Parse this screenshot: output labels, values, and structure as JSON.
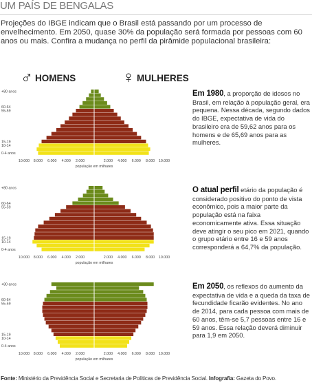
{
  "title": "UM PAÍS DE BENGALAS",
  "intro": "Projeções do IBGE indicam que o Brasil está passando por um processo de envelhecimento. Em 2050, quase 30% da população será formada por pessoas com 60 anos ou mais. Confira a mudança no perfil da pirâmide populacional brasileira:",
  "legend": {
    "men_symbol": "♂",
    "men_label": "HOMENS",
    "women_symbol": "♀",
    "women_label": "MULHERES"
  },
  "colors": {
    "young": "#f2e21a",
    "working": "#8e2b17",
    "elderly": "#6b8b1c",
    "axis": "#ffffff"
  },
  "chart_data": [
    {
      "type": "bar",
      "orientation": "horizontal-pyramid",
      "ages": [
        "0-4 anos",
        "5-9",
        "10-14",
        "15-19",
        "20-24",
        "25-29",
        "30-34",
        "35-39",
        "40-44",
        "45-49",
        "50-54",
        "55-59",
        "60-64",
        "65-69",
        "70-74",
        "75-79",
        "+80 anos"
      ],
      "age_labels_shown": [
        "+80 anos",
        "60-64",
        "55-59",
        "15-19",
        "10-14",
        "0-4 anos"
      ],
      "series": [
        {
          "name": "HOMENS",
          "values": [
            8000,
            8200,
            7900,
            7500,
            6800,
            6100,
            5400,
            4800,
            4200,
            3600,
            3100,
            2600,
            2100,
            1650,
            1150,
            750,
            450
          ]
        },
        {
          "name": "MULHERES",
          "values": [
            7800,
            8000,
            7700,
            7400,
            6700,
            6100,
            5500,
            4900,
            4300,
            3800,
            3300,
            2800,
            2300,
            1850,
            1400,
            950,
            650
          ]
        }
      ],
      "xticks": [
        "10.000",
        "8.000",
        "6.000",
        "4.000",
        "2.000",
        "2.000",
        "4.000",
        "6.000",
        "8.000",
        "10.000"
      ],
      "xlabel": "população em milhares",
      "xlim": [
        0,
        10000
      ]
    },
    {
      "type": "bar",
      "orientation": "horizontal-pyramid",
      "ages": [
        "0-4 anos",
        "5-9",
        "10-14",
        "15-19",
        "20-24",
        "25-29",
        "30-34",
        "35-39",
        "40-44",
        "45-49",
        "50-54",
        "55-59",
        "60-64",
        "65-69",
        "70-74",
        "75-79",
        "+80 anos"
      ],
      "age_labels_shown": [
        "+80 anos",
        "60-64",
        "55-59",
        "15-19",
        "10-14",
        "0-4 anos"
      ],
      "series": [
        {
          "name": "HOMENS",
          "values": [
            7500,
            8200,
            8800,
            8600,
            8500,
            8400,
            8000,
            7200,
            6400,
            5600,
            4800,
            4000,
            3100,
            2300,
            1600,
            1100,
            800
          ]
        },
        {
          "name": "MULHERES",
          "values": [
            7200,
            7900,
            8500,
            8500,
            8500,
            8400,
            8100,
            7500,
            6700,
            6000,
            5200,
            4400,
            3500,
            2700,
            2000,
            1500,
            1200
          ]
        }
      ],
      "xticks": [
        "10.000",
        "8.000",
        "6.000",
        "4.000",
        "2.000",
        "2.000",
        "4.000",
        "6.000",
        "8.000",
        "10.000"
      ],
      "xlabel": "população em milhares",
      "xlim": [
        0,
        10000
      ]
    },
    {
      "type": "bar",
      "orientation": "horizontal-pyramid",
      "ages": [
        "0-4 anos",
        "5-9",
        "10-14",
        "15-19",
        "20-24",
        "25-29",
        "30-34",
        "35-39",
        "40-44",
        "45-49",
        "50-54",
        "55-59",
        "60-64",
        "65-69",
        "70-74",
        "75-79",
        "+80 anos"
      ],
      "age_labels_shown": [
        "+80 anos",
        "60-64",
        "55-59",
        "15-19",
        "10-14",
        "0-4 anos"
      ],
      "series": [
        {
          "name": "HOMENS",
          "values": [
            4900,
            5200,
            5500,
            5800,
            6100,
            6500,
            6900,
            7100,
            7300,
            7400,
            7400,
            7300,
            7100,
            6800,
            6300,
            5400,
            6100
          ]
        },
        {
          "name": "MULHERES",
          "values": [
            4700,
            5000,
            5300,
            5600,
            5900,
            6300,
            6700,
            7000,
            7300,
            7500,
            7600,
            7600,
            7500,
            7300,
            7000,
            6400,
            8500
          ]
        }
      ],
      "xticks": [
        "10.000",
        "8.000",
        "6.000",
        "4.000",
        "2.000",
        "2.000",
        "4.000",
        "6.000",
        "8.000",
        "10.000"
      ],
      "xlabel": "população em milhares",
      "xlim": [
        0,
        10000
      ]
    }
  ],
  "descriptions": [
    {
      "lead": "Em 1980",
      "text": ", a proporção de idosos no Brasil, em relação à população geral, era pequena. Nessa década, segundo dados do IBGE, expectativa de vida do brasileiro era de 59,62 anos para os homens e de 65,69 anos para as mulheres."
    },
    {
      "lead": "O atual perfil",
      "text": " etário da população é considerado positivo do ponto de vista econômico, pois a maior parte da população está na faixa economicamente ativa. Essa situação deve atingir o seu pico em 2021, quando o grupo etário entre 16 e 59 anos corresponderá a 64,7% da população."
    },
    {
      "lead": "Em 2050",
      "text": ", os reflexos do aumento da expectativa de vida e a queda da taxa de fecundidade ficarão evidentes. No ano de 2014, para cada pessoa com mais de 60 anos, têm-se 5,7 pessoas entre 16 e 59 anos. Essa relação deverá diminuir para 1,9 em 2050."
    }
  ],
  "footer": {
    "source_label": "Fonte:",
    "source_text": " Ministério da Previdência Social e Secretaria de Políticas de Previdência Social. ",
    "infographic_label": "Infografia:",
    "infographic_text": " Gazeta do Povo."
  }
}
